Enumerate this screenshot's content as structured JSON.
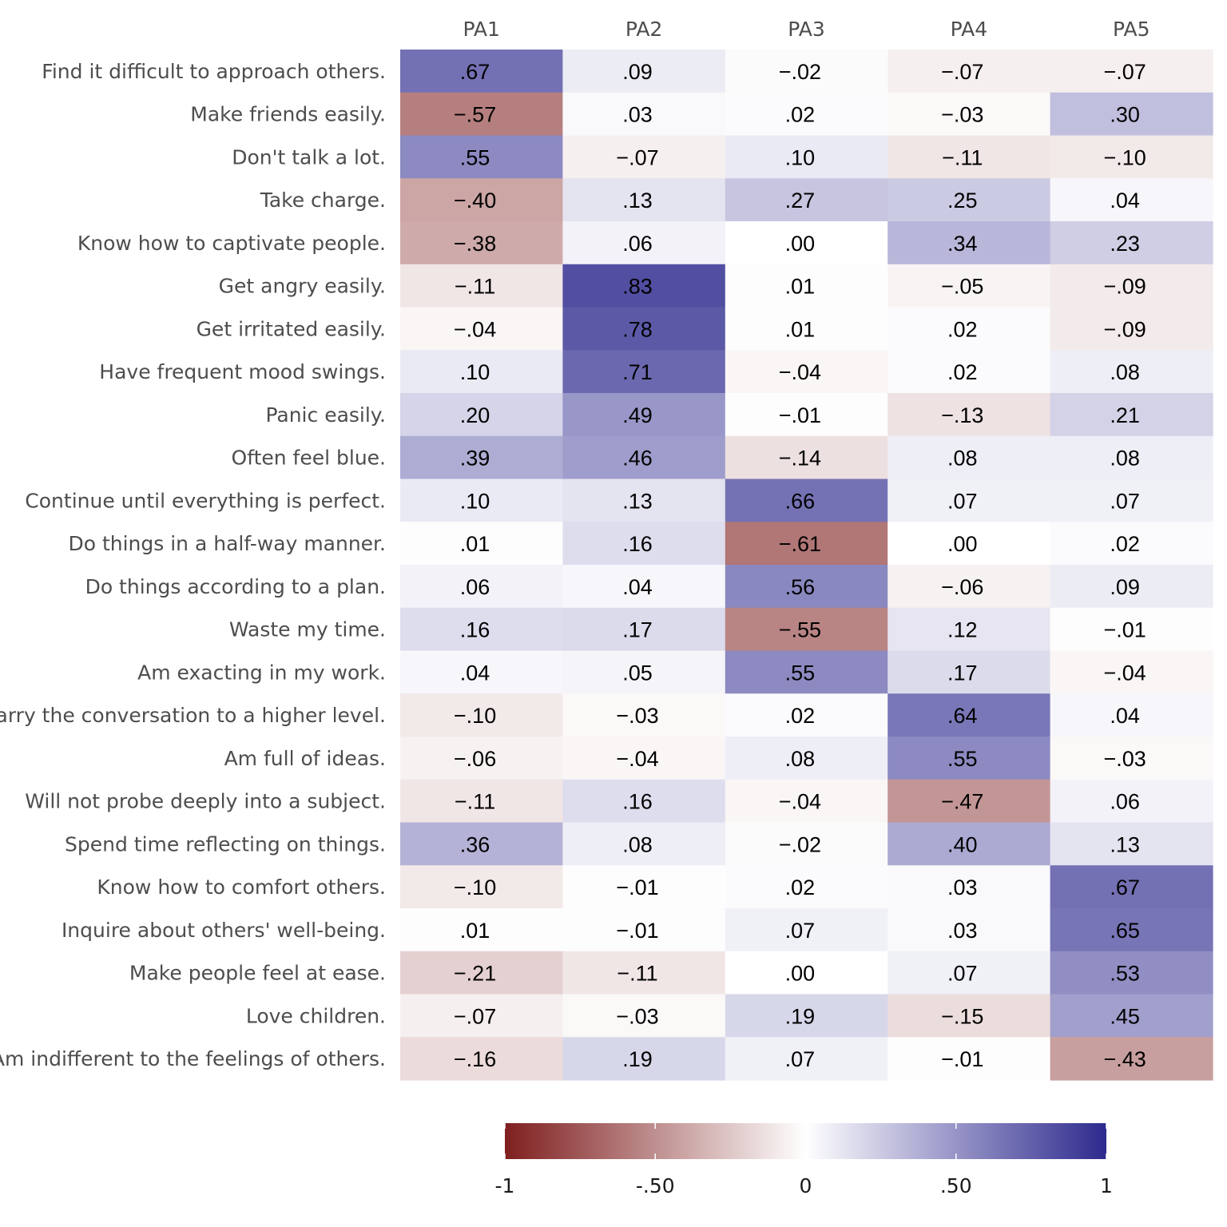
{
  "chart_data": {
    "type": "heatmap",
    "columns": [
      "PA1",
      "PA2",
      "PA3",
      "PA4",
      "PA5"
    ],
    "rows": [
      {
        "label": "Find it difficult to approach others.",
        "values": [
          0.67,
          0.09,
          -0.02,
          -0.07,
          -0.07
        ],
        "text": [
          ".67",
          ".09",
          "−.02",
          "−.07",
          "−.07"
        ]
      },
      {
        "label": "Make friends easily.",
        "values": [
          -0.57,
          0.03,
          0.02,
          -0.03,
          0.3
        ],
        "text": [
          "−.57",
          ".03",
          ".02",
          "−.03",
          ".30"
        ]
      },
      {
        "label": "Don't talk a lot.",
        "values": [
          0.55,
          -0.07,
          0.1,
          -0.11,
          -0.1
        ],
        "text": [
          ".55",
          "−.07",
          ".10",
          "−.11",
          "−.10"
        ]
      },
      {
        "label": "Take charge.",
        "values": [
          -0.4,
          0.13,
          0.27,
          0.25,
          0.04
        ],
        "text": [
          "−.40",
          ".13",
          ".27",
          ".25",
          ".04"
        ]
      },
      {
        "label": "Know how to captivate people.",
        "values": [
          -0.38,
          0.06,
          0.0,
          0.34,
          0.23
        ],
        "text": [
          "−.38",
          ".06",
          ".00",
          ".34",
          ".23"
        ]
      },
      {
        "label": "Get angry easily.",
        "values": [
          -0.11,
          0.83,
          0.01,
          -0.05,
          -0.09
        ],
        "text": [
          "−.11",
          ".83",
          ".01",
          "−.05",
          "−.09"
        ]
      },
      {
        "label": "Get irritated easily.",
        "values": [
          -0.04,
          0.78,
          0.01,
          0.02,
          -0.09
        ],
        "text": [
          "−.04",
          ".78",
          ".01",
          ".02",
          "−.09"
        ]
      },
      {
        "label": "Have frequent mood swings.",
        "values": [
          0.1,
          0.71,
          -0.04,
          0.02,
          0.08
        ],
        "text": [
          ".10",
          ".71",
          "−.04",
          ".02",
          ".08"
        ]
      },
      {
        "label": "Panic easily.",
        "values": [
          0.2,
          0.49,
          -0.01,
          -0.13,
          0.21
        ],
        "text": [
          ".20",
          ".49",
          "−.01",
          "−.13",
          ".21"
        ]
      },
      {
        "label": "Often feel blue.",
        "values": [
          0.39,
          0.46,
          -0.14,
          0.08,
          0.08
        ],
        "text": [
          ".39",
          ".46",
          "−.14",
          ".08",
          ".08"
        ]
      },
      {
        "label": "Continue until everything is perfect.",
        "values": [
          0.1,
          0.13,
          0.66,
          0.07,
          0.07
        ],
        "text": [
          ".10",
          ".13",
          ".66",
          ".07",
          ".07"
        ]
      },
      {
        "label": "Do things in a half-way manner.",
        "values": [
          0.01,
          0.16,
          -0.61,
          0.0,
          0.02
        ],
        "text": [
          ".01",
          ".16",
          "−.61",
          ".00",
          ".02"
        ]
      },
      {
        "label": "Do things according to a plan.",
        "values": [
          0.06,
          0.04,
          0.56,
          -0.06,
          0.09
        ],
        "text": [
          ".06",
          ".04",
          ".56",
          "−.06",
          ".09"
        ]
      },
      {
        "label": "Waste my time.",
        "values": [
          0.16,
          0.17,
          -0.55,
          0.12,
          -0.01
        ],
        "text": [
          ".16",
          ".17",
          "−.55",
          ".12",
          "−.01"
        ]
      },
      {
        "label": "Am exacting in my work.",
        "values": [
          0.04,
          0.05,
          0.55,
          0.17,
          -0.04
        ],
        "text": [
          ".04",
          ".05",
          ".55",
          ".17",
          "−.04"
        ]
      },
      {
        "label": "Carry the conversation to a higher level.",
        "values": [
          -0.1,
          -0.03,
          0.02,
          0.64,
          0.04
        ],
        "text": [
          "−.10",
          "−.03",
          ".02",
          ".64",
          ".04"
        ]
      },
      {
        "label": "Am full of ideas.",
        "values": [
          -0.06,
          -0.04,
          0.08,
          0.55,
          -0.03
        ],
        "text": [
          "−.06",
          "−.04",
          ".08",
          ".55",
          "−.03"
        ]
      },
      {
        "label": "Will not probe deeply into a subject.",
        "values": [
          -0.11,
          0.16,
          -0.04,
          -0.47,
          0.06
        ],
        "text": [
          "−.11",
          ".16",
          "−.04",
          "−.47",
          ".06"
        ]
      },
      {
        "label": "Spend time reflecting on things.",
        "values": [
          0.36,
          0.08,
          -0.02,
          0.4,
          0.13
        ],
        "text": [
          ".36",
          ".08",
          "−.02",
          ".40",
          ".13"
        ]
      },
      {
        "label": "Know how to comfort others.",
        "values": [
          -0.1,
          -0.01,
          0.02,
          0.03,
          0.67
        ],
        "text": [
          "−.10",
          "−.01",
          ".02",
          ".03",
          ".67"
        ]
      },
      {
        "label": "Inquire about others' well-being.",
        "values": [
          0.01,
          -0.01,
          0.07,
          0.03,
          0.65
        ],
        "text": [
          ".01",
          "−.01",
          ".07",
          ".03",
          ".65"
        ]
      },
      {
        "label": "Make people feel at ease.",
        "values": [
          -0.21,
          -0.11,
          0.0,
          0.07,
          0.53
        ],
        "text": [
          "−.21",
          "−.11",
          ".00",
          ".07",
          ".53"
        ]
      },
      {
        "label": "Love children.",
        "values": [
          -0.07,
          -0.03,
          0.19,
          -0.15,
          0.45
        ],
        "text": [
          "−.07",
          "−.03",
          ".19",
          "−.15",
          ".45"
        ]
      },
      {
        "label": "Am indifferent to the feelings of others.",
        "values": [
          -0.16,
          0.19,
          0.07,
          -0.01,
          -0.43
        ],
        "text": [
          "−.16",
          ".19",
          ".07",
          "−.01",
          "−.43"
        ]
      }
    ],
    "color_scale": {
      "range": [
        -1,
        1
      ],
      "negative_color": "#7f1f1f",
      "mid_color": "#ffffff",
      "positive_color": "#2e2a8e"
    },
    "colorbar": {
      "ticks": [
        -1,
        -0.5,
        0,
        0.5,
        1
      ],
      "tick_labels": [
        "-1",
        "-.50",
        "0",
        ".50",
        "1"
      ],
      "placement": "bottom"
    }
  }
}
